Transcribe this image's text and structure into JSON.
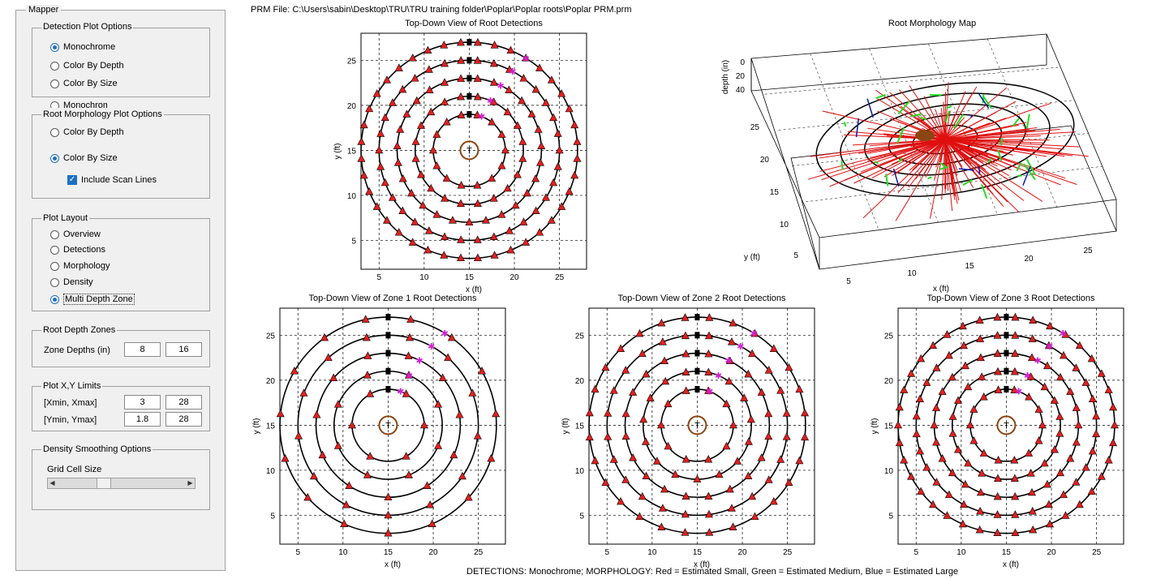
{
  "mapper": {
    "title": "Mapper",
    "detection_plot_options": {
      "title": "Detection Plot Options",
      "options": [
        "Monochrome",
        "Color By Depth",
        "Color By Size"
      ],
      "selected": "Monochrome",
      "clipped_option": "Monochrome"
    },
    "root_morphology_plot_options": {
      "title": "Root Morphology Plot Options",
      "options": [
        "Color By Depth",
        "Color By Size"
      ],
      "selected": "Color By Size",
      "include_scan_lines_label": "Include Scan Lines",
      "include_scan_lines_checked": true
    },
    "plot_layout": {
      "title": "Plot Layout",
      "options": [
        "Overview",
        "Detections",
        "Morphology",
        "Density",
        "Multi Depth Zone"
      ],
      "selected": "Multi Depth Zone"
    },
    "root_depth_zones": {
      "title": "Root Depth Zones",
      "label": "Zone Depths (in)",
      "values": [
        "8",
        "16"
      ]
    },
    "plot_limits": {
      "title": "Plot X,Y Limits",
      "x_label": "[Xmin, Xmax]",
      "x_values": [
        "3",
        "28"
      ],
      "y_label": "[Ymin, Ymax]",
      "y_values": [
        "1.8",
        "28"
      ]
    },
    "density_smoothing": {
      "title": "Density Smoothing Options",
      "grid_cell_label": "Grid Cell Size",
      "slider_level": 0.35
    }
  },
  "prm_file": "PRM File: C:\\Users\\sabin\\Desktop\\TRU\\TRU training folder\\Poplar\\Poplar roots\\Poplar PRM.prm",
  "footer": "DETECTIONS: Monochrome; MORPHOLOGY: Red = Estimated Small, Green = Estimated Medium, Blue = Estimated Large",
  "colors": {
    "detection_marker": "#e02020",
    "scan_line": "#000000",
    "tree_marker": "#8b4513",
    "small_root": "#e01010",
    "medium_root": "#22dd22",
    "large_root": "#0a1aa8",
    "accent": "#1e6fc4"
  },
  "chart_data": [
    {
      "type": "scatter",
      "title": "Top-Down View of Root Detections",
      "xlabel": "x (ft)",
      "ylabel": "y (ft)",
      "xlim": [
        3,
        28
      ],
      "ylim": [
        1.8,
        28
      ],
      "xticks": [
        5,
        10,
        15,
        20,
        25
      ],
      "yticks": [
        5,
        10,
        15,
        20,
        25
      ],
      "tree_center": [
        15,
        15
      ],
      "tree_label": "T",
      "scan_radii": [
        4,
        6,
        8,
        10,
        12
      ],
      "detections_per_circle": [
        14,
        20,
        27,
        34,
        40
      ],
      "detection_arc_deg": [
        0,
        360
      ],
      "grid": true
    },
    {
      "type": "scatter",
      "title": "Root Morphology Map",
      "xlabel": "x (ft)",
      "ylabel": "y (ft)",
      "zlabel": "depth (in)",
      "xticks": [
        5,
        10,
        15,
        20,
        25
      ],
      "yticks": [
        5,
        10,
        15,
        20,
        25
      ],
      "zticks": [
        0,
        20,
        40
      ],
      "series": [
        {
          "name": "Red = Estimated Small"
        },
        {
          "name": "Green = Estimated Medium"
        },
        {
          "name": "Blue = Estimated Large"
        }
      ],
      "grid": true
    },
    {
      "type": "scatter",
      "title": "Top-Down View of Zone 1 Root Detections",
      "xlabel": "x (ft)",
      "ylabel": "y (ft)",
      "xlim": [
        3,
        28
      ],
      "ylim": [
        1.8,
        28
      ],
      "xticks": [
        5,
        10,
        15,
        20,
        25
      ],
      "yticks": [
        5,
        10,
        15,
        20,
        25
      ],
      "tree_center": [
        15,
        15
      ],
      "tree_label": "T",
      "scan_radii": [
        4,
        6,
        8,
        10,
        12
      ],
      "detections_per_circle": [
        6,
        8,
        11,
        13,
        15
      ],
      "detection_arc_deg": [
        0,
        360
      ],
      "grid": true
    },
    {
      "type": "scatter",
      "title": "Top-Down View of Zone 2 Root Detections",
      "xlabel": "x (ft)",
      "ylabel": "y (ft)",
      "xlim": [
        3,
        28
      ],
      "ylim": [
        1.8,
        28
      ],
      "xticks": [
        5,
        10,
        15,
        20,
        25
      ],
      "yticks": [
        5,
        10,
        15,
        20,
        25
      ],
      "tree_center": [
        15,
        15
      ],
      "tree_label": "T",
      "scan_radii": [
        4,
        6,
        8,
        10,
        12
      ],
      "detections_per_circle": [
        10,
        15,
        20,
        24,
        28
      ],
      "detection_arc_deg": [
        0,
        360
      ],
      "grid": true
    },
    {
      "type": "scatter",
      "title": "Top-Down View of Zone 3 Root Detections",
      "xlabel": "x (ft)",
      "ylabel": "y (ft)",
      "xlim": [
        3,
        28
      ],
      "ylim": [
        1.8,
        28
      ],
      "xticks": [
        5,
        10,
        15,
        20,
        25
      ],
      "yticks": [
        5,
        10,
        15,
        20,
        25
      ],
      "tree_center": [
        15,
        15
      ],
      "tree_label": "T",
      "scan_radii": [
        4,
        6,
        8,
        10,
        12
      ],
      "detections_per_circle": [
        14,
        20,
        26,
        32,
        38
      ],
      "detection_arc_deg": [
        0,
        360
      ],
      "grid": true
    }
  ]
}
